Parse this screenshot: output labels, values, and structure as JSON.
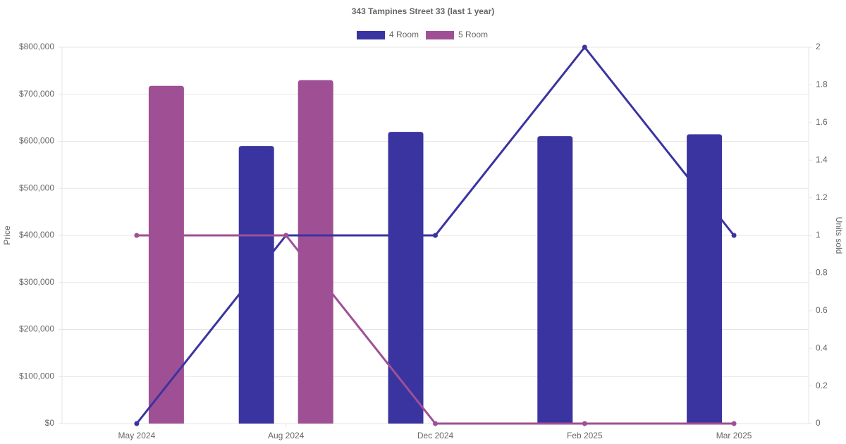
{
  "chart_data": {
    "type": "bar-line",
    "title": "343 Tampines Street 33 (last 1 year)",
    "y_label": "Price",
    "y2_label": "Units sold",
    "categories": [
      "May 2024",
      "Aug 2024",
      "Dec 2024",
      "Feb 2025",
      "Mar 2025"
    ],
    "series": [
      {
        "name": "4 Room",
        "color": "#3a34a0",
        "type": "bar",
        "values": [
          null,
          590000,
          620000,
          611000,
          615000
        ]
      },
      {
        "name": "5 Room",
        "color": "#9f5094",
        "type": "bar",
        "values": [
          718000,
          730000,
          null,
          null,
          null
        ]
      },
      {
        "color": "#3a34a0",
        "type": "line",
        "axis": "y2",
        "values": [
          0,
          1,
          1,
          2,
          1
        ]
      },
      {
        "color": "#9f5094",
        "type": "line",
        "axis": "y2",
        "values": [
          1,
          1,
          0,
          0,
          0
        ]
      }
    ],
    "ylim": [
      0,
      800000
    ],
    "yticks": [
      {
        "value": 0,
        "label": "$0"
      },
      {
        "value": 100000,
        "label": "$100,000"
      },
      {
        "value": 200000,
        "label": "$200,000"
      },
      {
        "value": 300000,
        "label": "$300,000"
      },
      {
        "value": 400000,
        "label": "$400,000"
      },
      {
        "value": 500000,
        "label": "$500,000"
      },
      {
        "value": 600000,
        "label": "$600,000"
      },
      {
        "value": 700000,
        "label": "$700,000"
      },
      {
        "value": 800000,
        "label": "$800,000"
      }
    ],
    "y2lim": [
      0,
      2
    ],
    "y2ticks": [
      0,
      0.2,
      0.4,
      0.6,
      0.8,
      1,
      1.2,
      1.4,
      1.6,
      1.8,
      2
    ],
    "grid": true,
    "legend": "top"
  }
}
